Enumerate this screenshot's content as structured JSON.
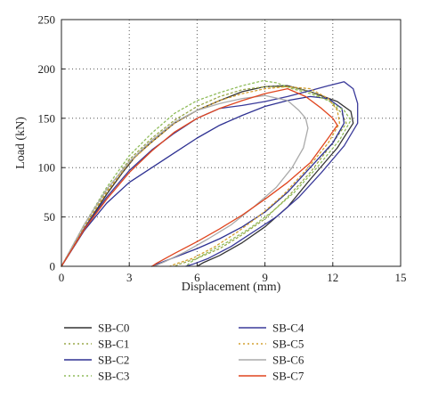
{
  "chart_data": {
    "type": "line",
    "title": "",
    "xlabel": "Displacement (mm)",
    "ylabel": "Load (kN)",
    "xlim": [
      0,
      15
    ],
    "ylim": [
      0,
      250
    ],
    "xticks": [
      "0",
      "3",
      "6",
      "9",
      "12",
      "15"
    ],
    "yticks": [
      "0",
      "50",
      "100",
      "150",
      "200",
      "250"
    ],
    "grid": "dotted",
    "legend_position": "below",
    "series": [
      {
        "name": "SB-C0",
        "color": "#333333",
        "dash": "solid",
        "points": [
          [
            0,
            0
          ],
          [
            1,
            38
          ],
          [
            2,
            73
          ],
          [
            2.7,
            95
          ],
          [
            3.3,
            112
          ],
          [
            4,
            126
          ],
          [
            5,
            145
          ],
          [
            6,
            158
          ],
          [
            7,
            168
          ],
          [
            8,
            177
          ],
          [
            9,
            182
          ],
          [
            10,
            183
          ],
          [
            11,
            177
          ],
          [
            12.2,
            167
          ],
          [
            12.8,
            157
          ],
          [
            12.9,
            145
          ],
          [
            12.2,
            120
          ],
          [
            11,
            88
          ],
          [
            10,
            60
          ],
          [
            9,
            40
          ],
          [
            8,
            24
          ],
          [
            7,
            11
          ],
          [
            6.3,
            4
          ],
          [
            6,
            0
          ]
        ]
      },
      {
        "name": "SB-C1",
        "color": "#9aa84a",
        "dash": "2,3",
        "points": [
          [
            0,
            0
          ],
          [
            1,
            40
          ],
          [
            2,
            76
          ],
          [
            3,
            108
          ],
          [
            4,
            130
          ],
          [
            5,
            148
          ],
          [
            6,
            162
          ],
          [
            7,
            172
          ],
          [
            8,
            179
          ],
          [
            9,
            182
          ],
          [
            10,
            182
          ],
          [
            11,
            177
          ],
          [
            11.9,
            167
          ],
          [
            12.4,
            155
          ],
          [
            12.6,
            145
          ],
          [
            12,
            125
          ],
          [
            11,
            95
          ],
          [
            10,
            70
          ],
          [
            9,
            48
          ],
          [
            8,
            32
          ],
          [
            7,
            18
          ],
          [
            6,
            8
          ],
          [
            5.2,
            2
          ],
          [
            5,
            0
          ]
        ]
      },
      {
        "name": "SB-C2",
        "color": "#2e3192",
        "dash": "solid",
        "points": [
          [
            0,
            0
          ],
          [
            1,
            36
          ],
          [
            2,
            64
          ],
          [
            3,
            85
          ],
          [
            4,
            100
          ],
          [
            5,
            115
          ],
          [
            6,
            130
          ],
          [
            7,
            143
          ],
          [
            8,
            153
          ],
          [
            9,
            162
          ],
          [
            10,
            168
          ],
          [
            11,
            172
          ],
          [
            11.8,
            170
          ],
          [
            12.4,
            160
          ],
          [
            12.5,
            145
          ],
          [
            12,
            125
          ],
          [
            11,
            100
          ],
          [
            10,
            75
          ],
          [
            9,
            55
          ],
          [
            8,
            40
          ],
          [
            7,
            28
          ],
          [
            6,
            18
          ],
          [
            5,
            9
          ],
          [
            4.2,
            2
          ],
          [
            4,
            0
          ]
        ]
      },
      {
        "name": "SB-C3",
        "color": "#8fbc5a",
        "dash": "2,3",
        "points": [
          [
            0,
            0
          ],
          [
            1,
            42
          ],
          [
            2,
            80
          ],
          [
            3,
            112
          ],
          [
            4,
            135
          ],
          [
            5,
            155
          ],
          [
            6,
            168
          ],
          [
            7,
            176
          ],
          [
            8,
            183
          ],
          [
            8.9,
            188
          ],
          [
            9.5,
            186
          ],
          [
            10.2,
            180
          ],
          [
            11,
            175
          ],
          [
            11.8,
            168
          ],
          [
            12.5,
            158
          ],
          [
            12.8,
            148
          ],
          [
            12.3,
            128
          ],
          [
            11.3,
            100
          ],
          [
            10.3,
            75
          ],
          [
            9.3,
            55
          ],
          [
            8.3,
            38
          ],
          [
            7.3,
            24
          ],
          [
            6.3,
            12
          ],
          [
            5.7,
            4
          ],
          [
            5.5,
            0
          ]
        ]
      },
      {
        "name": "SB-C4",
        "color": "#3a3a9a",
        "dash": "solid",
        "points": [
          [
            0,
            0
          ],
          [
            1,
            38
          ],
          [
            2,
            70
          ],
          [
            3,
            97
          ],
          [
            4,
            118
          ],
          [
            5,
            135
          ],
          [
            6,
            150
          ],
          [
            7,
            160
          ],
          [
            8,
            163
          ],
          [
            9,
            167
          ],
          [
            10,
            172
          ],
          [
            11,
            178
          ],
          [
            11.8,
            183
          ],
          [
            12.5,
            187
          ],
          [
            12.9,
            180
          ],
          [
            13.1,
            165
          ],
          [
            13.1,
            145
          ],
          [
            12.5,
            122
          ],
          [
            11.5,
            95
          ],
          [
            10.5,
            70
          ],
          [
            9.5,
            50
          ],
          [
            8.5,
            35
          ],
          [
            7.5,
            20
          ],
          [
            6.5,
            8
          ],
          [
            5.8,
            2
          ],
          [
            5.5,
            0
          ]
        ]
      },
      {
        "name": "SB-C5",
        "color": "#d4a030",
        "dash": "2,3",
        "points": [
          [
            0,
            0
          ],
          [
            1,
            40
          ],
          [
            2,
            75
          ],
          [
            3,
            105
          ],
          [
            4,
            126
          ],
          [
            5,
            145
          ],
          [
            6,
            158
          ],
          [
            7,
            168
          ],
          [
            8,
            175
          ],
          [
            9,
            180
          ],
          [
            10,
            182
          ],
          [
            11,
            180
          ],
          [
            11.8,
            170
          ],
          [
            12.2,
            158
          ],
          [
            12.3,
            145
          ],
          [
            11.8,
            125
          ],
          [
            10.8,
            97
          ],
          [
            9.8,
            72
          ],
          [
            8.8,
            52
          ],
          [
            7.8,
            35
          ],
          [
            6.8,
            20
          ],
          [
            5.8,
            8
          ],
          [
            5,
            2
          ],
          [
            4.8,
            0
          ]
        ]
      },
      {
        "name": "SB-C6",
        "color": "#aaaaaa",
        "dash": "solid",
        "points": [
          [
            0,
            0
          ],
          [
            1,
            42
          ],
          [
            2,
            78
          ],
          [
            3,
            106
          ],
          [
            4,
            128
          ],
          [
            5,
            146
          ],
          [
            6,
            158
          ],
          [
            7,
            165
          ],
          [
            8,
            170
          ],
          [
            9,
            173
          ],
          [
            10,
            168
          ],
          [
            10.5,
            158
          ],
          [
            10.8,
            150
          ],
          [
            10.9,
            140
          ],
          [
            10.7,
            120
          ],
          [
            10.2,
            100
          ],
          [
            9.5,
            80
          ],
          [
            8.5,
            60
          ],
          [
            7.5,
            42
          ],
          [
            6.5,
            28
          ],
          [
            5.5,
            15
          ],
          [
            4.6,
            5
          ],
          [
            4.1,
            0
          ]
        ]
      },
      {
        "name": "SB-C7",
        "color": "#e0451e",
        "dash": "solid",
        "points": [
          [
            0,
            0
          ],
          [
            1,
            37
          ],
          [
            2,
            68
          ],
          [
            3,
            95
          ],
          [
            4,
            117
          ],
          [
            5,
            136
          ],
          [
            6,
            150
          ],
          [
            7,
            160
          ],
          [
            8,
            168
          ],
          [
            9,
            175
          ],
          [
            10,
            180
          ],
          [
            10.8,
            172
          ],
          [
            11.5,
            160
          ],
          [
            12,
            150
          ],
          [
            12.2,
            143
          ],
          [
            11.8,
            130
          ],
          [
            11,
            105
          ],
          [
            10,
            85
          ],
          [
            9,
            68
          ],
          [
            8,
            52
          ],
          [
            7,
            38
          ],
          [
            6,
            25
          ],
          [
            5,
            13
          ],
          [
            4.2,
            3
          ],
          [
            4,
            0
          ]
        ]
      }
    ]
  }
}
